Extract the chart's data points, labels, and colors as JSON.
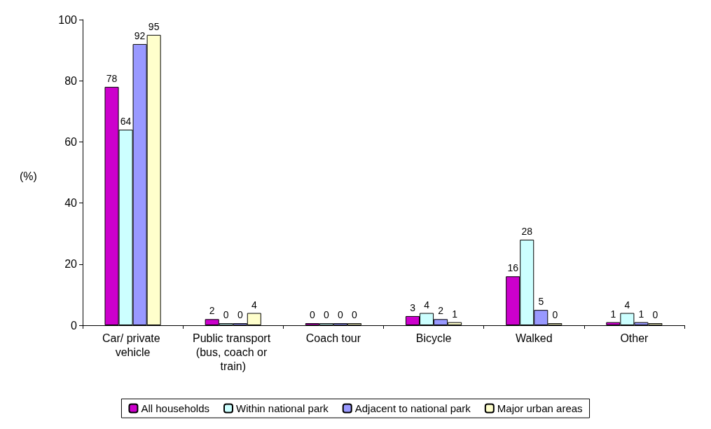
{
  "chart_data": {
    "type": "bar",
    "ylabel": "(%)",
    "categories": [
      "Car/ private vehicle",
      "Public transport (bus, coach or train)",
      "Coach tour",
      "Bicycle",
      "Walked",
      "Other"
    ],
    "series": [
      {
        "name": "All households",
        "color": "#cc00cc",
        "values": [
          78,
          2,
          0,
          3,
          16,
          1
        ]
      },
      {
        "name": "Within national park",
        "color": "#ccffff",
        "values": [
          64,
          0,
          0,
          4,
          28,
          4
        ]
      },
      {
        "name": "Adjacent to national park",
        "color": "#9999ff",
        "values": [
          92,
          0,
          0,
          2,
          5,
          1
        ]
      },
      {
        "name": "Major urban areas",
        "color": "#ffffcc",
        "values": [
          95,
          4,
          0,
          1,
          0,
          0
        ]
      }
    ],
    "ylim": [
      0,
      100
    ],
    "yticks": [
      0,
      20,
      40,
      60,
      80,
      100
    ],
    "grid": false,
    "legend": "bottom",
    "data_labels": true
  }
}
